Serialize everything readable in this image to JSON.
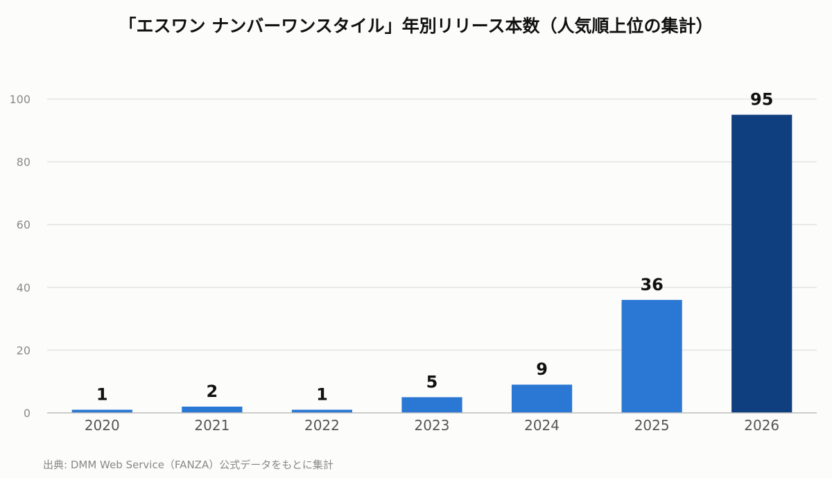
{
  "chart_data": {
    "type": "bar",
    "title": "「エスワン ナンバーワンスタイル」年別リリース本数（人気順上位の集計）",
    "categories": [
      "2020",
      "2021",
      "2022",
      "2023",
      "2024",
      "2025",
      "2026"
    ],
    "values": [
      1,
      2,
      1,
      5,
      9,
      36,
      95
    ],
    "xlabel": "",
    "ylabel": "",
    "ylim": [
      0,
      100
    ],
    "yticks": [
      0,
      20,
      40,
      60,
      80,
      100
    ],
    "grid": true,
    "legend": "none",
    "data_labels": true,
    "colors": {
      "bar": "#2b78d4",
      "highlight_bar": "#0f3f7f",
      "grid": "#e3e3e3",
      "axis": "#bbbbbb",
      "tick_text": "#8a8a8a",
      "category_text": "#555555",
      "value_text": "#111111"
    },
    "highlight_index": 6
  },
  "footer": {
    "source": "出典: DMM Web Service（FANZA）公式データをもとに集計"
  }
}
